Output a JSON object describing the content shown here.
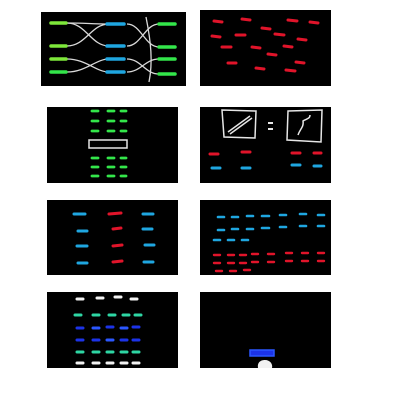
{
  "colors": {
    "background": "#ffffff",
    "panel": "#000000",
    "green": "#33e64a",
    "lime": "#7ee83a",
    "blue": "#1fa6e0",
    "dark_blue": "#1c33e8",
    "royal_blue": "#2b57ff",
    "red": "#e0142a",
    "teal": "#2ed6a4",
    "white": "#f2f2f2",
    "line": "#d9d9d9"
  },
  "panels": [
    {
      "id": "p1",
      "content": "sorting-swaps-green-blue"
    },
    {
      "id": "p2",
      "content": "scattered-red-dashes"
    },
    {
      "id": "p3",
      "content": "green-groups-with-box"
    },
    {
      "id": "p4",
      "content": "equation-drawings-red-blue"
    },
    {
      "id": "p5",
      "content": "blue-red-columns"
    },
    {
      "id": "p6",
      "content": "blue-rows-over-red-rows"
    },
    {
      "id": "p7",
      "content": "white-teal-blue-rows"
    },
    {
      "id": "p8",
      "content": "blue-box-white-blob"
    }
  ]
}
